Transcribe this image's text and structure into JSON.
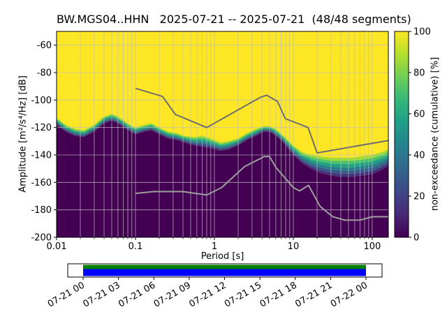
{
  "title": "BW.MGS04..HHN   2025-07-21 -- 2025-07-21  (48/48 segments)",
  "header": {
    "station_id": "BW.MGS04..HHN",
    "date_start": "2025-07-21",
    "date_end": "2025-07-21",
    "segments_used": 48,
    "segments_total": 48
  },
  "axis_labels": {
    "x": "Period [s]",
    "y": "Amplitude [m²/s⁴/Hz] [dB]",
    "colorbar": "non-exceedance (cumulative) [%]"
  },
  "chart_data": {
    "type": "heatmap",
    "subtype": "ppsd-cumulative-spectral-distribution",
    "title": "BW.MGS04..HHN   2025-07-21 -- 2025-07-21  (48/48 segments)",
    "xlabel": "Period [s]",
    "ylabel": "Amplitude [m²/s⁴/Hz] [dB]",
    "colorbar_label": "non-exceedance (cumulative) [%]",
    "xscale": "log",
    "xlim": [
      0.01,
      160
    ],
    "ylim": [
      -200,
      -50
    ],
    "grid": true,
    "x_ticks": [
      0.01,
      0.1,
      1,
      10,
      100
    ],
    "x_tick_labels": [
      "0.01",
      "0.1",
      "1",
      "10",
      "100"
    ],
    "y_ticks": [
      -60,
      -80,
      -100,
      -120,
      -140,
      -160,
      -180,
      -200
    ],
    "colorbar_range": [
      0,
      100
    ],
    "colorbar_ticks": [
      0,
      20,
      40,
      60,
      80,
      100
    ],
    "colormap": "viridis",
    "colormap_stops": [
      "#440154",
      "#482878",
      "#3e4989",
      "#31688e",
      "#26828e",
      "#1f9e89",
      "#35b779",
      "#6ece58",
      "#b5de2b",
      "#fde725"
    ],
    "colors": {
      "high": "#fde725",
      "low": "#440154",
      "transition_bands": [
        "#46327e",
        "#365c8d",
        "#277f8e",
        "#1fa187",
        "#4ac16d",
        "#a0da39"
      ],
      "grid": "#bdbdbd",
      "noise_model_high": "#6e6e6e",
      "noise_model_low": "#9e9e9e",
      "frame": "#000000"
    },
    "distribution": {
      "comment_periods_unit": "seconds, dB values are PSD amplitude where cumulative distribution transitions",
      "periods": [
        0.01,
        0.013,
        0.017,
        0.022,
        0.03,
        0.04,
        0.05,
        0.06,
        0.08,
        0.1,
        0.13,
        0.16,
        0.2,
        0.26,
        0.33,
        0.42,
        0.55,
        0.7,
        0.9,
        1.2,
        1.5,
        2.0,
        2.6,
        3.4,
        4.2,
        5.0,
        6.0,
        7.5,
        10,
        13,
        17,
        22,
        30,
        40,
        55,
        75,
        100,
        130,
        160
      ],
      "dark_top_db": [
        -118,
        -123,
        -126,
        -127,
        -123,
        -117,
        -115,
        -117,
        -122,
        -125,
        -123,
        -122,
        -125,
        -128,
        -129,
        -131,
        -133,
        -134,
        -135,
        -137,
        -136,
        -133,
        -129,
        -126,
        -123,
        -123,
        -126,
        -131,
        -140,
        -146,
        -150,
        -153,
        -155,
        -156,
        -156,
        -155,
        -154,
        -151,
        -148
      ],
      "yellow_bottom_db": [
        -113,
        -118,
        -121,
        -122,
        -118,
        -112,
        -110,
        -112,
        -117,
        -120,
        -118,
        -117,
        -120,
        -123,
        -124,
        -126,
        -127,
        -126,
        -128,
        -131,
        -130,
        -128,
        -124,
        -121,
        -119,
        -119,
        -121,
        -126,
        -133,
        -138,
        -140,
        -141,
        -142,
        -142,
        -142,
        -141,
        -140,
        -138,
        -136
      ]
    },
    "noise_models": {
      "nhnm": [
        [
          0.1,
          -91.5
        ],
        [
          0.22,
          -97.4
        ],
        [
          0.32,
          -110.5
        ],
        [
          0.8,
          -120.0
        ],
        [
          3.8,
          -98.1
        ],
        [
          4.6,
          -96.5
        ],
        [
          6.3,
          -101.0
        ],
        [
          7.9,
          -113.5
        ],
        [
          15.4,
          -120.0
        ],
        [
          20.0,
          -138.5
        ],
        [
          160.0,
          -129.5
        ]
      ],
      "nlnm": [
        [
          0.1,
          -168.0
        ],
        [
          0.17,
          -166.7
        ],
        [
          0.4,
          -166.7
        ],
        [
          0.8,
          -169.2
        ],
        [
          1.24,
          -163.7
        ],
        [
          2.4,
          -148.6
        ],
        [
          4.3,
          -141.1
        ],
        [
          5.0,
          -141.1
        ],
        [
          6.0,
          -149.0
        ],
        [
          10.0,
          -163.8
        ],
        [
          12.0,
          -166.2
        ],
        [
          15.6,
          -162.1
        ],
        [
          21.9,
          -177.5
        ],
        [
          31.6,
          -185.0
        ],
        [
          45.0,
          -187.5
        ],
        [
          70.0,
          -187.5
        ],
        [
          101.0,
          -185.0
        ],
        [
          154.0,
          -185.0
        ],
        [
          160.0,
          -185.1
        ]
      ]
    },
    "timeline": {
      "tick_labels": [
        "07-21 00",
        "07-21 03",
        "07-21 06",
        "07-21 09",
        "07-21 12",
        "07-21 15",
        "07-21 18",
        "07-21 21",
        "07-22 00"
      ],
      "colors": {
        "background": "#ffffff",
        "border": "#000000",
        "top_stripe": "#008000",
        "coverage": "#0000ff"
      }
    }
  }
}
